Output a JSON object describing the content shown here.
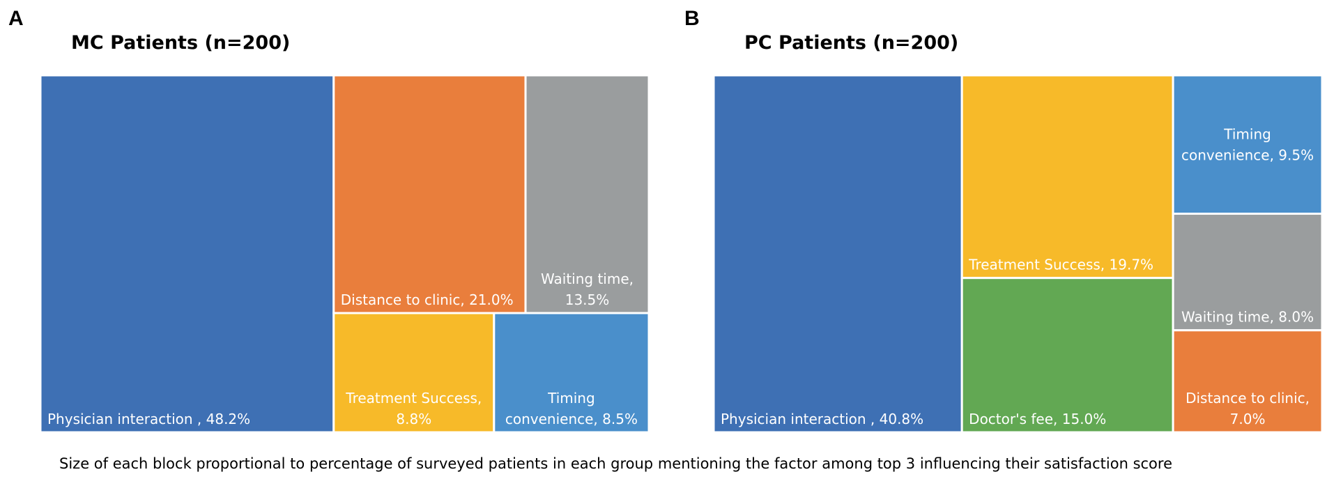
{
  "panels": [
    {
      "letter": "A",
      "title": "MC Patients (n=200)"
    },
    {
      "letter": "B",
      "title": "PC Patients (n=200)"
    }
  ],
  "caption": "Size of each block proportional to percentage of surveyed patients in each group mentioning the factor among top 3 influencing  their satisfaction score",
  "chart_data": [
    {
      "type": "treemap",
      "title": "MC Patients (n=200)",
      "unit": "%",
      "tiles": [
        {
          "name": "Physician interaction",
          "value": 48.2,
          "label_lines": [
            "Physician interaction , 48.2%"
          ],
          "color": "#3E70B4"
        },
        {
          "name": "Distance to clinic",
          "value": 21.0,
          "label_lines": [
            "Distance to clinic, 21.0%"
          ],
          "color": "#E97E3C"
        },
        {
          "name": "Waiting time",
          "value": 13.5,
          "label_lines": [
            "Waiting time,",
            "13.5%"
          ],
          "color": "#9A9D9E"
        },
        {
          "name": "Treatment Success",
          "value": 8.8,
          "label_lines": [
            "Treatment Success,",
            "8.8%"
          ],
          "color": "#F7BA29"
        },
        {
          "name": "Timing convenience",
          "value": 8.5,
          "label_lines": [
            "Timing",
            "convenience, 8.5%"
          ],
          "color": "#4A8FCB"
        }
      ]
    },
    {
      "type": "treemap",
      "title": "PC Patients (n=200)",
      "unit": "%",
      "tiles": [
        {
          "name": "Physician interaction",
          "value": 40.8,
          "label_lines": [
            "Physician interaction , 40.8%"
          ],
          "color": "#3E70B4"
        },
        {
          "name": "Treatment Success",
          "value": 19.7,
          "label_lines": [
            "Treatment Success, 19.7%"
          ],
          "color": "#F7BA29"
        },
        {
          "name": "Doctor's fee",
          "value": 15.0,
          "label_lines": [
            "Doctor's fee, 15.0%"
          ],
          "color": "#62A853"
        },
        {
          "name": "Timing convenience",
          "value": 9.5,
          "label_lines": [
            "Timing",
            "convenience, 9.5%"
          ],
          "color": "#4A8FCB"
        },
        {
          "name": "Waiting time",
          "value": 8.0,
          "label_lines": [
            "Waiting time, 8.0%"
          ],
          "color": "#9A9D9E"
        },
        {
          "name": "Distance to clinic",
          "value": 7.0,
          "label_lines": [
            "Distance to clinic,",
            "7.0%"
          ],
          "color": "#E97E3C"
        }
      ]
    }
  ]
}
